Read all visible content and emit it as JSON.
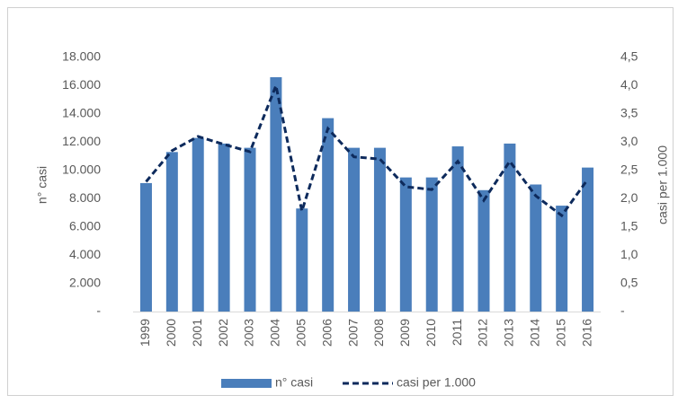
{
  "chart_data": {
    "type": "bar",
    "categories": [
      "1999",
      "2000",
      "2001",
      "2002",
      "2003",
      "2004",
      "2005",
      "2006",
      "2007",
      "2008",
      "2009",
      "2010",
      "2011",
      "2012",
      "2013",
      "2014",
      "2015",
      "2016"
    ],
    "series": [
      {
        "name": "n° casi",
        "type": "bar",
        "color": "#4a7ebb",
        "values": [
          9100,
          11300,
          12300,
          11900,
          11600,
          16600,
          7300,
          13700,
          11600,
          11600,
          9500,
          9500,
          11700,
          8600,
          11900,
          9000,
          7500,
          10200
        ]
      },
      {
        "name": "casi per 1.000",
        "type": "line",
        "axis": "y2",
        "color": "#0d2a5c",
        "values": [
          2.3,
          2.85,
          3.1,
          2.96,
          2.83,
          4.0,
          1.78,
          3.24,
          2.74,
          2.7,
          2.21,
          2.16,
          2.66,
          1.97,
          2.66,
          2.05,
          1.7,
          2.34
        ]
      }
    ],
    "ylabel": "n° casi",
    "y2label": "casi per 1.000",
    "ylim": [
      0,
      18000
    ],
    "yticks": [
      {
        "value": 0,
        "label": "-"
      },
      {
        "value": 2000,
        "label": "2.000"
      },
      {
        "value": 4000,
        "label": "4.000"
      },
      {
        "value": 6000,
        "label": "6.000"
      },
      {
        "value": 8000,
        "label": "8.000"
      },
      {
        "value": 10000,
        "label": "10.000"
      },
      {
        "value": 12000,
        "label": "12.000"
      },
      {
        "value": 14000,
        "label": "14.000"
      },
      {
        "value": 16000,
        "label": "16.000"
      },
      {
        "value": 18000,
        "label": "18.000"
      }
    ],
    "y2lim": [
      0,
      4.5
    ],
    "y2ticks": [
      {
        "value": 0,
        "label": "-"
      },
      {
        "value": 0.5,
        "label": "0,5"
      },
      {
        "value": 1,
        "label": "1,0"
      },
      {
        "value": 1.5,
        "label": "1,5"
      },
      {
        "value": 2,
        "label": "2,0"
      },
      {
        "value": 2.5,
        "label": "2,5"
      },
      {
        "value": 3,
        "label": "3,0"
      },
      {
        "value": 3.5,
        "label": "3,5"
      },
      {
        "value": 4,
        "label": "4,0"
      },
      {
        "value": 4.5,
        "label": "4,5"
      }
    ],
    "grid": false,
    "legend": "bottom"
  }
}
